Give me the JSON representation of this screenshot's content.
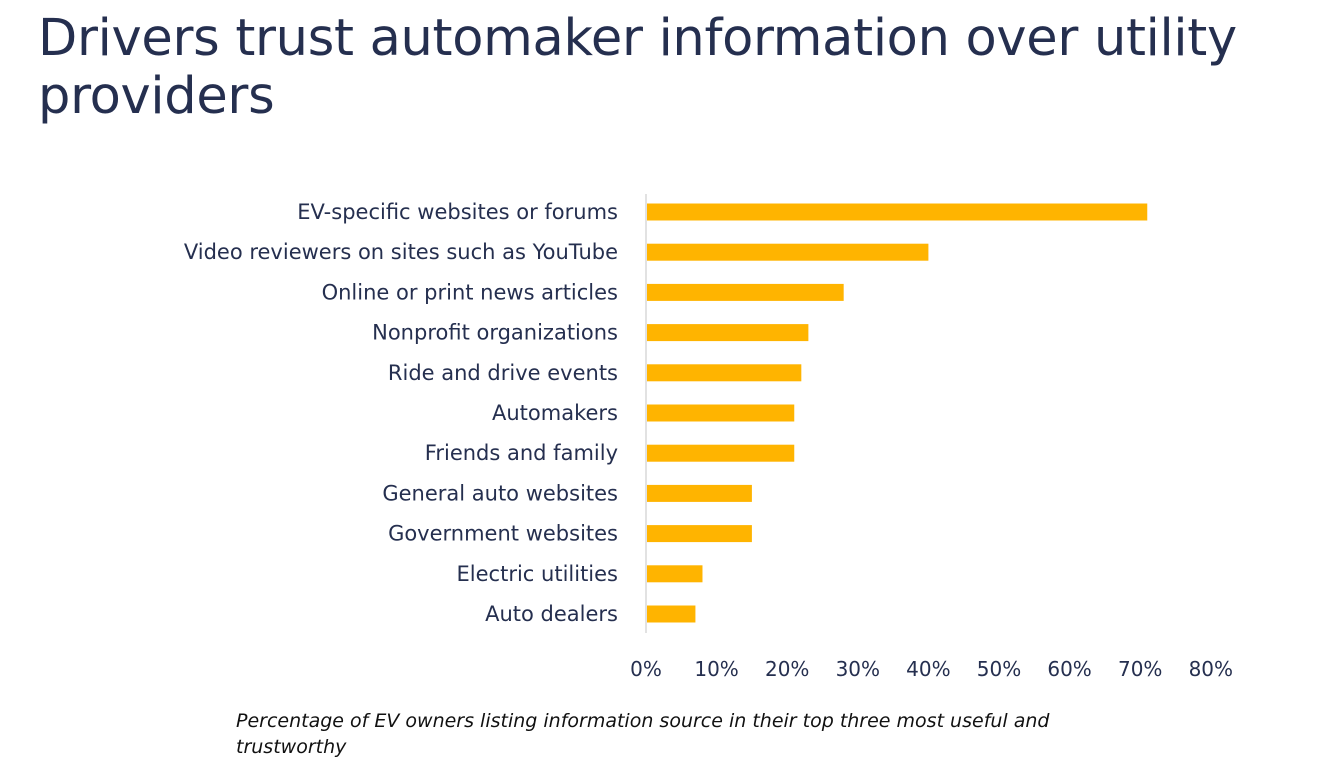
{
  "page": {
    "title": "Drivers trust automaker information over utility providers",
    "caption": "Percentage of EV owners listing information source in their top three most useful and trustworthy"
  },
  "chart_data": {
    "type": "bar",
    "orientation": "horizontal",
    "title": "",
    "xlabel": "",
    "ylabel": "",
    "categories": [
      "EV-specific websites or forums",
      "Video reviewers on sites such as YouTube",
      "Online or print news articles",
      "Nonprofit organizations",
      "Ride and drive events",
      "Automakers",
      "Friends and family",
      "General auto websites",
      "Government websites",
      "Electric utilities",
      "Auto dealers"
    ],
    "values": [
      71,
      40,
      28,
      23,
      22,
      21,
      21,
      15,
      15,
      8,
      7
    ],
    "xlim": [
      0,
      80
    ],
    "xticks": [
      0,
      10,
      20,
      30,
      40,
      50,
      60,
      70,
      80
    ],
    "tick_format": "{v}%",
    "bar_color": "#FFB400",
    "grid": false,
    "legend": "none"
  }
}
